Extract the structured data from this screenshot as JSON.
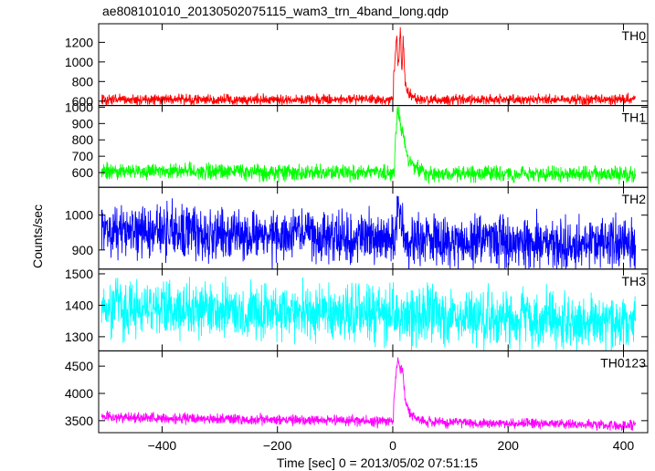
{
  "chart_data": {
    "type": "line",
    "title": "ae808101010_20130502075115_wam3_trn_4band_long.qdp",
    "xlabel": "Time [sec] 0 = 2013/05/02 07:51:15",
    "ylabel": "Counts/sec",
    "xlim": [
      -510,
      442
    ],
    "x_ticks": [
      -400,
      -200,
      0,
      200,
      400
    ],
    "x_tick_labels": [
      "−400",
      "−200",
      "0",
      "200",
      "400"
    ],
    "grid": false,
    "panels": [
      {
        "name": "TH0",
        "color": "#ff0000",
        "ylim": [
          555,
          1390
        ],
        "y_ticks": [
          600,
          800,
          1000,
          1200
        ],
        "y_tick_labels": [
          "600",
          "800",
          "1000",
          "1200"
        ],
        "baseline": 615,
        "noise": 26,
        "trend": 0,
        "peak_extra": [
          [
            1,
            185
          ],
          [
            7,
            680
          ],
          [
            9,
            360
          ],
          [
            11,
            420
          ],
          [
            13,
            730
          ],
          [
            16,
            280
          ],
          [
            18,
            640
          ],
          [
            21,
            200
          ],
          [
            24,
            120
          ],
          [
            28,
            50
          ],
          [
            40,
            20
          ]
        ]
      },
      {
        "name": "TH1",
        "color": "#00ff00",
        "ylim": [
          510,
          1010
        ],
        "y_ticks": [
          600,
          700,
          800,
          900,
          1000
        ],
        "y_tick_labels": [
          "600",
          "700",
          "800",
          "900",
          "1000"
        ],
        "baseline": 608,
        "noise": 24,
        "trend": -20,
        "peak_extra": [
          [
            3,
            110
          ],
          [
            6,
            290
          ],
          [
            9,
            380
          ],
          [
            12,
            330
          ],
          [
            15,
            250
          ],
          [
            18,
            260
          ],
          [
            22,
            160
          ],
          [
            28,
            70
          ],
          [
            40,
            25
          ],
          [
            55,
            8
          ]
        ]
      },
      {
        "name": "TH2",
        "color": "#0000ff",
        "ylim": [
          845,
          1080
        ],
        "y_ticks": [
          900,
          1000
        ],
        "y_tick_labels": [
          "900",
          "1000"
        ],
        "baseline": 955,
        "noise": 36,
        "trend": -40,
        "peak_extra": [
          [
            5,
            35
          ],
          [
            10,
            80
          ],
          [
            15,
            40
          ],
          [
            20,
            20
          ]
        ]
      },
      {
        "name": "TH3",
        "color": "#00ffff",
        "ylim": [
          1255,
          1515
        ],
        "y_ticks": [
          1300,
          1400,
          1500
        ],
        "y_tick_labels": [
          "1300",
          "1400",
          "1500"
        ],
        "baseline": 1395,
        "noise": 42,
        "trend": -50,
        "peak_extra": [
          [
            10,
            15
          ]
        ]
      },
      {
        "name": "TH0123",
        "color": "#ff00ff",
        "ylim": [
          3280,
          4780
        ],
        "y_ticks": [
          3500,
          4000,
          4500
        ],
        "y_tick_labels": [
          "3500",
          "4000",
          "4500"
        ],
        "baseline": 3565,
        "noise": 45,
        "trend": -150,
        "peak_extra": [
          [
            1,
            200
          ],
          [
            5,
            820
          ],
          [
            9,
            1130
          ],
          [
            13,
            950
          ],
          [
            17,
            1010
          ],
          [
            21,
            420
          ],
          [
            25,
            250
          ],
          [
            30,
            130
          ],
          [
            40,
            60
          ],
          [
            55,
            20
          ]
        ]
      }
    ]
  }
}
